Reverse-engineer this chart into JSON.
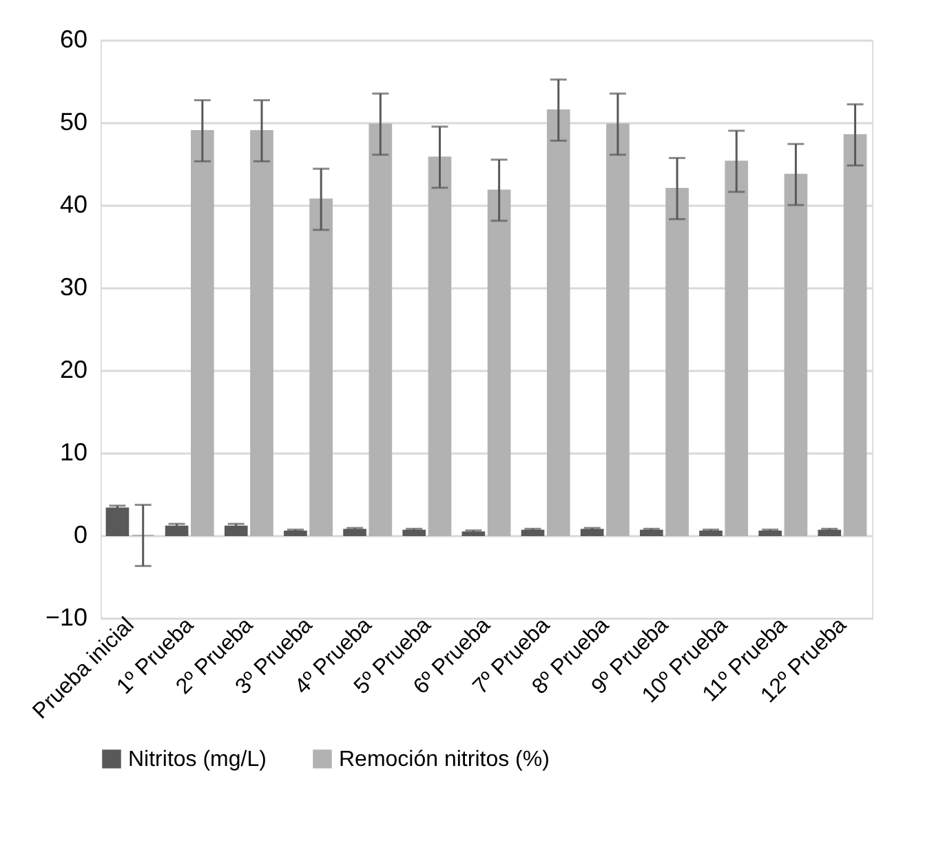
{
  "chart_data": {
    "type": "bar",
    "categories": [
      "Prueba inicial",
      "1º Prueba",
      "2º Prueba",
      "3º Prueba",
      "4º Prueba",
      "5º Prueba",
      "6º Prueba",
      "7º Prueba",
      "8º Prueba",
      "9º Prueba",
      "10º Prueba",
      "11º Prueba",
      "12º Prueba"
    ],
    "series": [
      {
        "name": "Nitritos (mg/L)",
        "color": "#595959",
        "values": [
          3.3,
          1.1,
          1.1,
          0.5,
          0.7,
          0.6,
          0.4,
          0.6,
          0.7,
          0.6,
          0.5,
          0.5,
          0.6
        ],
        "errors": [
          0.3,
          0.3,
          0.3,
          0.2,
          0.2,
          0.2,
          0.2,
          0.2,
          0.2,
          0.2,
          0.2,
          0.2,
          0.2
        ]
      },
      {
        "name": "Remoción nitritos (%)",
        "color": "#b2b2b2",
        "values": [
          0,
          49,
          49,
          40.7,
          49.8,
          45.8,
          41.8,
          51.5,
          49.8,
          42,
          45.3,
          43.7,
          48.5
        ],
        "errors": [
          3.7,
          3.7,
          3.7,
          3.7,
          3.7,
          3.7,
          3.7,
          3.7,
          3.7,
          3.7,
          3.7,
          3.7,
          3.7
        ]
      }
    ],
    "ylim": [
      -10,
      60
    ],
    "yticks": [
      -10,
      0,
      10,
      20,
      30,
      40,
      50,
      60
    ],
    "grid": "y",
    "legend": "bottom"
  }
}
